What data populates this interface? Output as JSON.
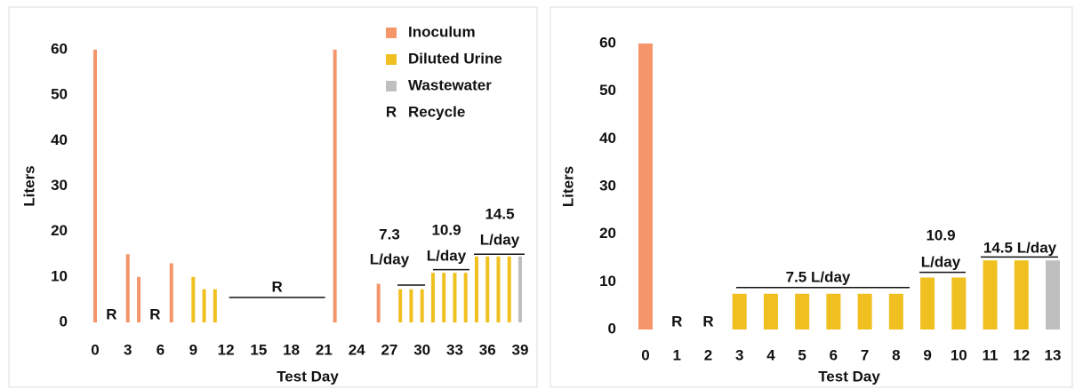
{
  "chart_data": [
    {
      "type": "bar",
      "x_label": "Test Day",
      "y_label": "Liters",
      "xlim": [
        0,
        39
      ],
      "xticks": [
        0,
        3,
        6,
        9,
        12,
        15,
        18,
        21,
        24,
        27,
        30,
        33,
        36,
        39
      ],
      "ylim": [
        0,
        60
      ],
      "yticks": [
        0,
        10,
        20,
        30,
        40,
        50,
        60
      ],
      "series": [
        {
          "name": "Inoculum",
          "color": "#f4956a",
          "x": [
            0,
            3,
            4,
            7,
            22,
            26
          ],
          "values": [
            60,
            15,
            10,
            13,
            60,
            8.5
          ]
        },
        {
          "name": "Diluted Urine",
          "color": "#f0c020",
          "x": [
            9,
            10,
            11,
            28,
            29,
            30,
            31,
            32,
            33,
            34,
            35,
            36,
            37,
            38
          ],
          "values": [
            10,
            7.3,
            7.3,
            7.3,
            7.3,
            7.3,
            10.9,
            10.9,
            10.9,
            10.9,
            14.5,
            14.5,
            14.5,
            14.5
          ]
        },
        {
          "name": "Wastewater",
          "color": "#bfbfbf",
          "x": [
            39
          ],
          "values": [
            14.5
          ]
        }
      ],
      "recycle_marker": "R",
      "recycle_label": "Recycle",
      "annotations": [
        [
          "7.3",
          "L/day"
        ],
        [
          "10.9",
          "L/day"
        ],
        [
          "14.5",
          "L/day"
        ]
      ],
      "legend": "top-right"
    },
    {
      "type": "bar",
      "x_label": "Test Day",
      "y_label": "Liters",
      "categories": [
        "0",
        "1",
        "2",
        "3",
        "4",
        "5",
        "6",
        "7",
        "8",
        "9",
        "10",
        "11",
        "12",
        "13"
      ],
      "ylim": [
        0,
        60
      ],
      "yticks": [
        0,
        10,
        20,
        30,
        40,
        50,
        60
      ],
      "series": [
        {
          "name": "Inoculum",
          "color": "#f4956a",
          "values": [
            60,
            null,
            null,
            null,
            null,
            null,
            null,
            null,
            null,
            null,
            null,
            null,
            null,
            null
          ]
        },
        {
          "name": "Diluted Urine",
          "color": "#f0c020",
          "values": [
            null,
            null,
            null,
            7.5,
            7.5,
            7.5,
            7.5,
            7.5,
            7.5,
            10.9,
            10.9,
            14.5,
            14.5,
            null
          ]
        },
        {
          "name": "Wastewater",
          "color": "#bfbfbf",
          "values": [
            null,
            null,
            null,
            null,
            null,
            null,
            null,
            null,
            null,
            null,
            null,
            null,
            null,
            14.5
          ]
        }
      ],
      "recycle_marker": "R",
      "annotations": [
        [
          "7.5 L/day"
        ],
        [
          "10.9",
          "L/day"
        ],
        [
          "14.5 L/day"
        ]
      ]
    }
  ]
}
